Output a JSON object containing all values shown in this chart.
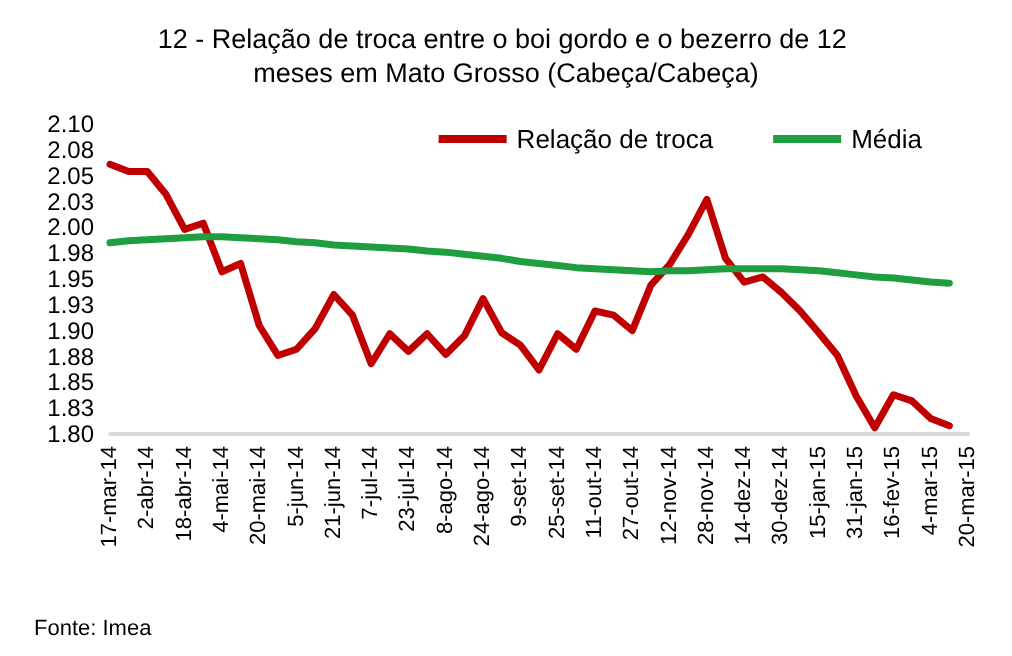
{
  "chart_data": {
    "type": "line",
    "title": "12 - Relação de troca entre o boi gordo e o bezerro de 12 meses em Mato Grosso (Cabeça/Cabeça)",
    "categories": [
      "17-mar-14",
      null,
      "2-abr-14",
      null,
      "18-abr-14",
      null,
      "4-mai-14",
      null,
      "20-mai-14",
      null,
      "5-jun-14",
      null,
      "21-jun-14",
      null,
      "7-jul-14",
      null,
      "23-jul-14",
      null,
      "8-ago-14",
      null,
      "24-ago-14",
      null,
      "9-set-14",
      null,
      "25-set-14",
      null,
      "11-out-14",
      null,
      "27-out-14",
      null,
      "12-nov-14",
      null,
      "28-nov-14",
      null,
      "14-dez-14",
      null,
      "30-dez-14",
      null,
      "15-jan-15",
      null,
      "31-jan-15",
      null,
      "16-fev-15",
      null,
      "4-mar-15",
      null,
      "20-mar-15"
    ],
    "series": [
      {
        "name": "Relação de troca",
        "color": "#c00000",
        "values": [
          2.061,
          2.054,
          2.054,
          2.032,
          1.998,
          2.004,
          1.957,
          1.965,
          1.905,
          1.876,
          1.882,
          1.902,
          1.935,
          1.915,
          1.868,
          1.897,
          1.88,
          1.897,
          1.877,
          1.895,
          1.931,
          1.898,
          1.886,
          1.862,
          1.897,
          1.882,
          1.919,
          1.915,
          1.9,
          1.944,
          1.964,
          1.993,
          2.027,
          1.97,
          1.947,
          1.952,
          1.937,
          1.919,
          1.898,
          1.876,
          1.837,
          1.806,
          1.838,
          1.832,
          1.815,
          1.808,
          null
        ]
      },
      {
        "name": "Média",
        "color": "#1e9e3e",
        "values": [
          1.985,
          1.987,
          1.988,
          1.989,
          1.99,
          1.991,
          1.991,
          1.99,
          1.989,
          1.988,
          1.986,
          1.985,
          1.983,
          1.982,
          1.981,
          1.98,
          1.979,
          1.977,
          1.976,
          1.974,
          1.972,
          1.97,
          1.967,
          1.965,
          1.963,
          1.961,
          1.96,
          1.959,
          1.958,
          1.957,
          1.958,
          1.958,
          1.959,
          1.96,
          1.96,
          1.96,
          1.96,
          1.959,
          1.958,
          1.956,
          1.954,
          1.952,
          1.951,
          1.949,
          1.947,
          1.946,
          null
        ]
      }
    ],
    "ylim": [
      1.8,
      2.1
    ],
    "yticks": [
      {
        "value": 1.8,
        "label": "1.80"
      },
      {
        "value": 1.825,
        "label": "1.83"
      },
      {
        "value": 1.85,
        "label": "1.85"
      },
      {
        "value": 1.875,
        "label": "1.88"
      },
      {
        "value": 1.9,
        "label": "1.90"
      },
      {
        "value": 1.925,
        "label": "1.93"
      },
      {
        "value": 1.95,
        "label": "1.95"
      },
      {
        "value": 1.975,
        "label": "1.98"
      },
      {
        "value": 2.0,
        "label": "2.00"
      },
      {
        "value": 2.025,
        "label": "2.03"
      },
      {
        "value": 2.05,
        "label": "2.05"
      },
      {
        "value": 2.075,
        "label": "2.08"
      },
      {
        "value": 2.1,
        "label": "2.10"
      }
    ],
    "grid": false,
    "legend": "top right",
    "marker": "none",
    "line_style": "solid",
    "annotations": [
      "Fonte: Imea"
    ]
  }
}
